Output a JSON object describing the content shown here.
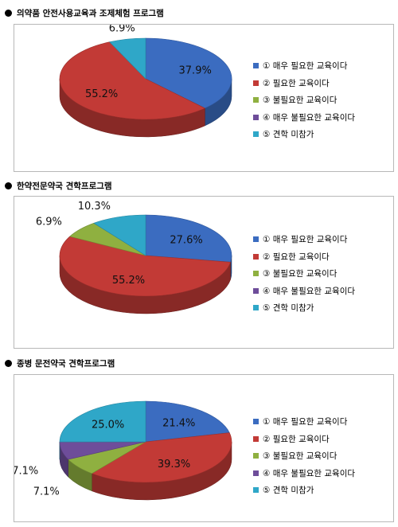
{
  "colors": {
    "s1": "#3b6cc0",
    "s2": "#c23a36",
    "s3": "#8fb040",
    "s4": "#6e4d9a",
    "s5": "#2fa7c8"
  },
  "legend_labels": [
    "① 매우 필요한 교육이다",
    "② 필요한 교육이다",
    "③ 불필요한 교육이다",
    "④ 매우 불필요한 교육이다",
    "⑤ 견학 미참가"
  ],
  "chart_data": [
    {
      "type": "pie",
      "title": "의약품 안전사용교육과 조제체험 프로그램",
      "categories": [
        "① 매우 필요한 교육이다",
        "② 필요한 교육이다",
        "③ 불필요한 교육이다",
        "④ 매우 불필요한 교육이다",
        "⑤ 견학 미참가"
      ],
      "values": [
        37.9,
        55.2,
        0,
        0,
        6.9
      ],
      "labels": [
        "37.9%",
        "55.2%",
        "",
        "",
        "6.9%"
      ],
      "legend_position": "right"
    },
    {
      "type": "pie",
      "title": "한약전문약국 견학프로그램",
      "categories": [
        "① 매우 필요한 교육이다",
        "② 필요한 교육이다",
        "③ 불필요한 교육이다",
        "④ 매우 불필요한 교육이다",
        "⑤ 견학 미참가"
      ],
      "values": [
        27.6,
        55.2,
        6.9,
        0,
        10.3
      ],
      "labels": [
        "27.6%",
        "55.2%",
        "6.9%",
        "",
        "10.3%"
      ],
      "legend_position": "right"
    },
    {
      "type": "pie",
      "title": "종병 문전약국 견학프로그램",
      "categories": [
        "① 매우 필요한 교육이다",
        "② 필요한 교육이다",
        "③ 불필요한 교육이다",
        "④ 매우 불필요한 교육이다",
        "⑤ 견학 미참가"
      ],
      "values": [
        21.4,
        39.3,
        7.1,
        7.1,
        25.0
      ],
      "labels": [
        "21.4%",
        "39.3%",
        "7.1%",
        "7.1%",
        "25.0%"
      ],
      "legend_position": "right"
    }
  ]
}
